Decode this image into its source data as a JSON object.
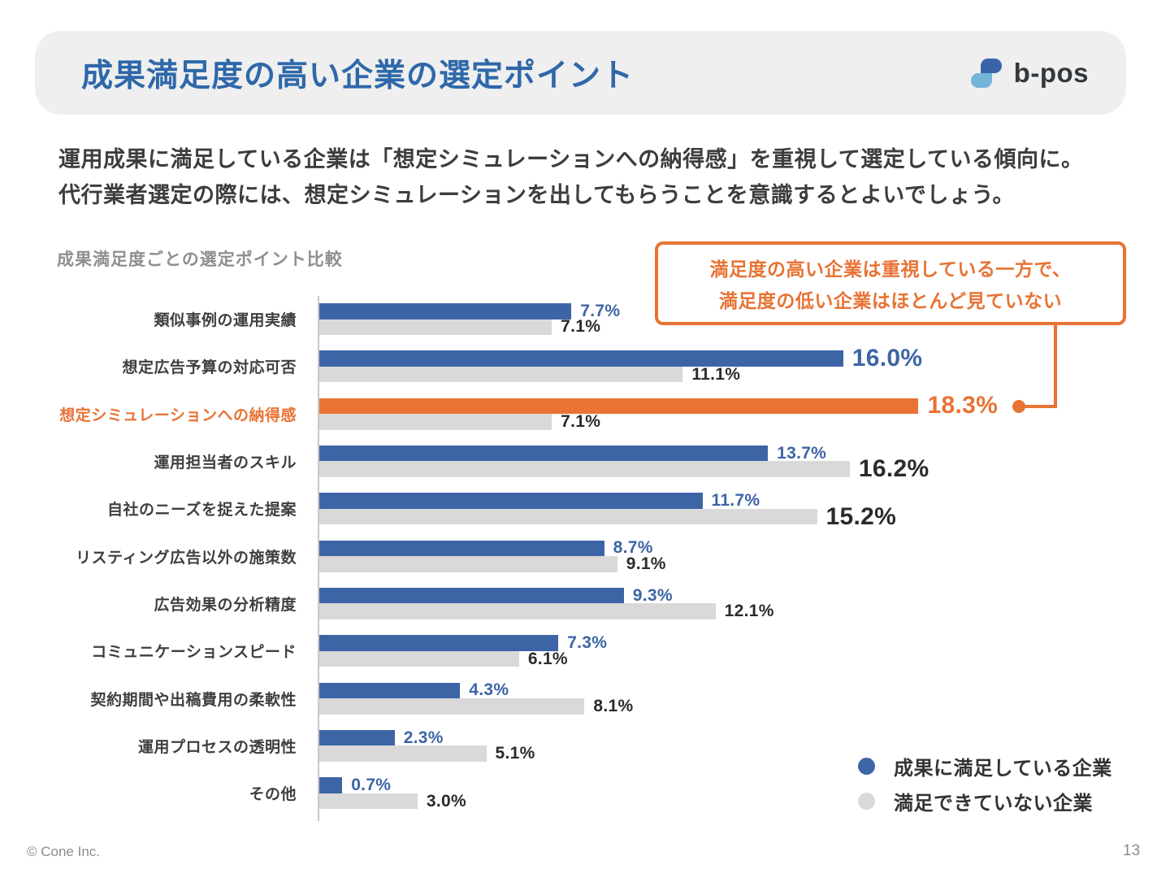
{
  "header": {
    "title": "成果満足度の高い企業の選定ポイント",
    "logo_text": "b-pos"
  },
  "description": {
    "line1": "運用成果に満足している企業は「想定シミュレーションへの納得感」を重視して選定している傾向に。",
    "line2": "代行業者選定の際には、想定シミュレーションを出してもらうことを意識するとよいでしょう。"
  },
  "annotation": {
    "line1": "満足度の高い企業は重視している一方で、",
    "line2": "満足度の低い企業はほとんど見ていない"
  },
  "chart_data": {
    "type": "bar",
    "orientation": "horizontal",
    "title": "成果満足度ごとの選定ポイント比較",
    "value_suffix": "%",
    "xlim": [
      0,
      20
    ],
    "grid": false,
    "legend_position": "bottom-right",
    "categories": [
      "類似事例の運用実績",
      "想定広告予算の対応可否",
      "想定シミュレーションへの納得感",
      "運用担当者のスキル",
      "自社のニーズを捉えた提案",
      "リスティング広告以外の施策数",
      "広告効果の分析精度",
      "コミュニケーションスピード",
      "契約期間や出稿費用の柔軟性",
      "運用プロセスの透明性",
      "その他"
    ],
    "series": [
      {
        "name": "成果に満足している企業",
        "color": "#3D65A6",
        "values": [
          7.7,
          16.0,
          18.3,
          13.7,
          11.7,
          8.7,
          9.3,
          7.3,
          4.3,
          2.3,
          0.7
        ]
      },
      {
        "name": "満足できていない企業",
        "color": "#D9D9D9",
        "values": [
          7.1,
          11.1,
          7.1,
          16.2,
          15.2,
          9.1,
          12.1,
          6.1,
          8.1,
          5.1,
          3.0
        ]
      }
    ],
    "highlight": {
      "index": 2,
      "color": "#E87334"
    },
    "big_label_threshold": 15
  },
  "footer": {
    "copyright": "© Cone Inc.",
    "page_number": "13"
  },
  "colors": {
    "title_blue": "#2E68A9",
    "bar_blue": "#3D65A6",
    "bar_gray": "#D9D9D9",
    "accent_orange": "#E87334",
    "header_bg": "#EFEFEF",
    "text_dark": "#3D3D3D",
    "value_dark": "#2B2B2B",
    "subtitle_gray": "#8F8F8F",
    "logo_dark_blue": "#3A63A9",
    "logo_light_blue": "#74B4D8",
    "logo_text_color": "#33383D"
  }
}
